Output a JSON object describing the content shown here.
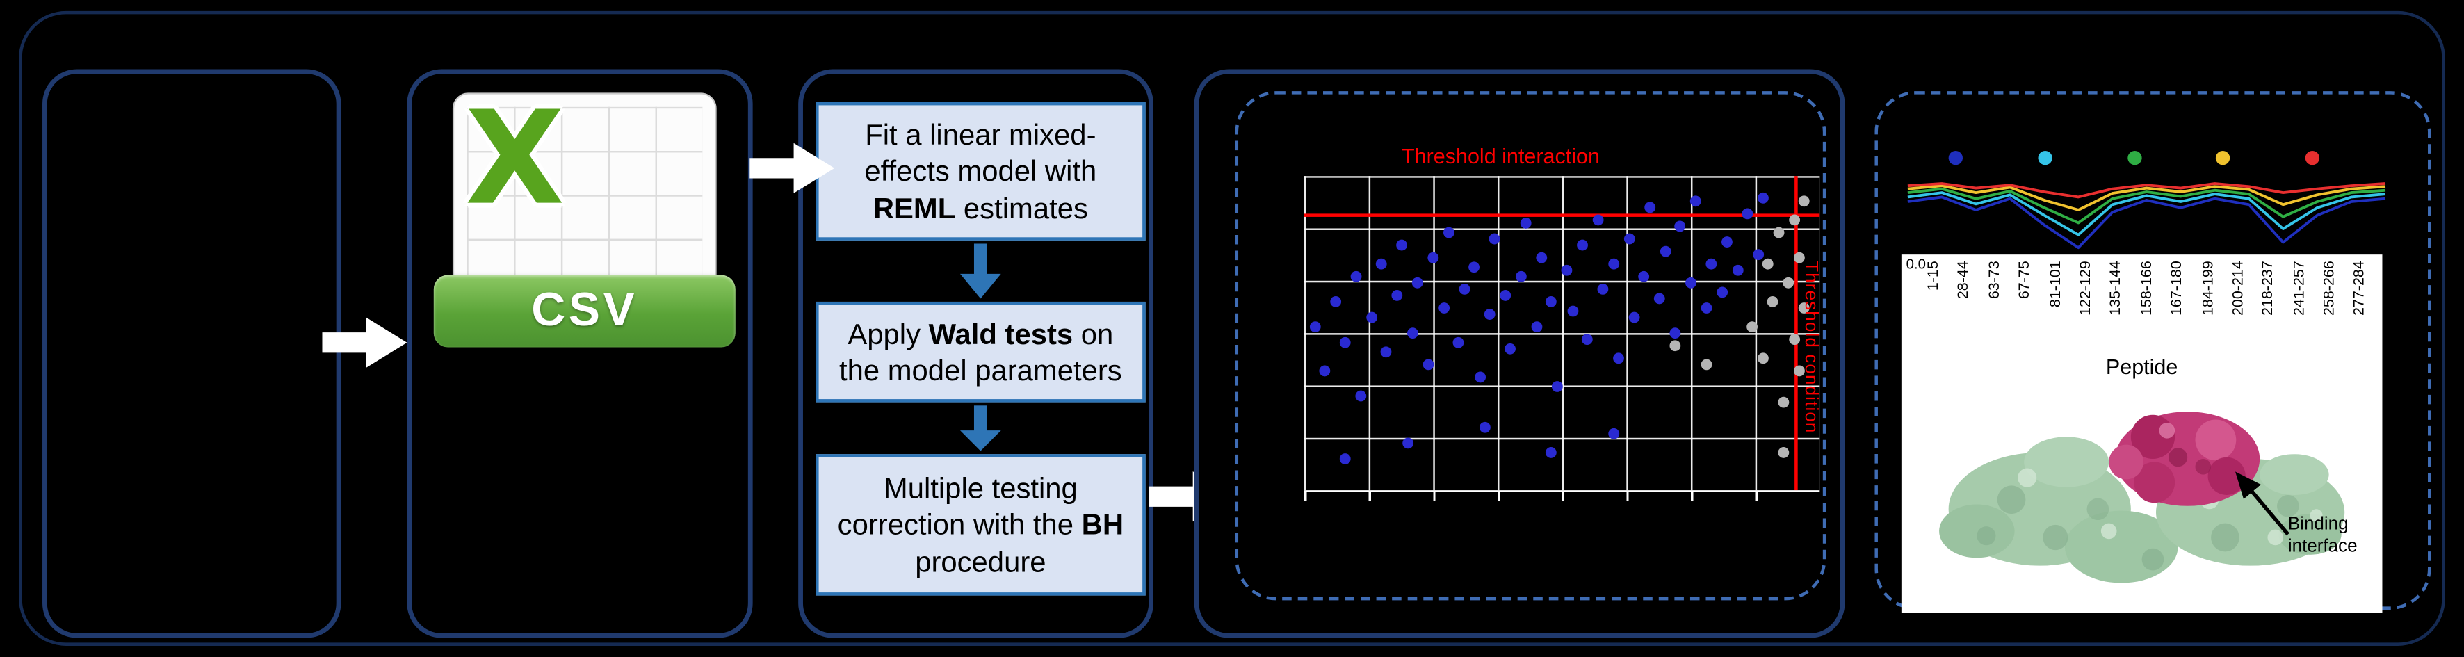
{
  "colors": {
    "background": "#000000",
    "panel_border": "#203a6e",
    "dashed_border": "#3f6cb4",
    "process_box_fill": "#dae3f3",
    "process_box_border": "#2e75b6",
    "flow_arrow": "#ffffff",
    "step_arrow": "#2e75b6",
    "threshold_red": "#ff0000",
    "csv_green": "#58a41e",
    "protein_green": "#a6cbab",
    "epitope_pink": "#c23a77"
  },
  "csv_icon": {
    "letter": "X",
    "label": "CSV"
  },
  "pipeline": {
    "steps": [
      {
        "pre": "Fit a linear mixed-effects model with ",
        "bold": "REML",
        "post": " estimates"
      },
      {
        "pre": "Apply ",
        "bold": "Wald tests",
        "post": " on the model parameters"
      },
      {
        "pre": "Multiple testing correction with the ",
        "bold": "BH",
        "post": " procedure"
      }
    ]
  },
  "results": {
    "binding_label": "Binding interface"
  },
  "chart_data": [
    {
      "id": "threshold-scatter",
      "type": "scatter",
      "title": "Threshold interaction",
      "vertical_label": "Threshold condition",
      "background": "#000000",
      "grid": {
        "on": true,
        "color": "#ffffff",
        "x_divisions": 8,
        "y_divisions": 6
      },
      "thresholds": {
        "horizontal_y_pct": 88,
        "vertical_x_pct": 95,
        "color": "#ff0000"
      },
      "units": "points are [x_pct_from_left, y_pct_from_bottom] of plot area",
      "series": [
        {
          "name": "scatter-point-blue",
          "color": "#2a2ad2",
          "points": [
            [
              2,
              52
            ],
            [
              4,
              38
            ],
            [
              6,
              60
            ],
            [
              8,
              10
            ],
            [
              8,
              47
            ],
            [
              10,
              68
            ],
            [
              11,
              30
            ],
            [
              13,
              55
            ],
            [
              15,
              72
            ],
            [
              16,
              44
            ],
            [
              18,
              62
            ],
            [
              19,
              78
            ],
            [
              20,
              15
            ],
            [
              21,
              50
            ],
            [
              22,
              66
            ],
            [
              24,
              40
            ],
            [
              25,
              74
            ],
            [
              27,
              58
            ],
            [
              28,
              82
            ],
            [
              30,
              47
            ],
            [
              31,
              64
            ],
            [
              33,
              71
            ],
            [
              34,
              36
            ],
            [
              35,
              20
            ],
            [
              36,
              56
            ],
            [
              37,
              80
            ],
            [
              39,
              62
            ],
            [
              40,
              45
            ],
            [
              42,
              68
            ],
            [
              43,
              85
            ],
            [
              45,
              52
            ],
            [
              46,
              74
            ],
            [
              48,
              12
            ],
            [
              48,
              60
            ],
            [
              49,
              33
            ],
            [
              51,
              70
            ],
            [
              52,
              57
            ],
            [
              54,
              78
            ],
            [
              55,
              48
            ],
            [
              57,
              86
            ],
            [
              58,
              64
            ],
            [
              60,
              18
            ],
            [
              60,
              72
            ],
            [
              61,
              42
            ],
            [
              63,
              80
            ],
            [
              64,
              55
            ],
            [
              66,
              68
            ],
            [
              67,
              90
            ],
            [
              69,
              61
            ],
            [
              70,
              76
            ],
            [
              72,
              50
            ],
            [
              73,
              84
            ],
            [
              75,
              66
            ],
            [
              76,
              92
            ],
            [
              78,
              58
            ],
            [
              79,
              72
            ],
            [
              81,
              63
            ],
            [
              82,
              79
            ],
            [
              84,
              70
            ],
            [
              86,
              88
            ],
            [
              88,
              75
            ],
            [
              89,
              93
            ]
          ]
        },
        {
          "name": "scatter-point-grey",
          "color": "#b5b5b5",
          "points": [
            [
              72,
              46
            ],
            [
              78,
              40
            ],
            [
              87,
              52
            ],
            [
              89,
              42
            ],
            [
              90,
              72
            ],
            [
              91,
              60
            ],
            [
              92,
              82
            ],
            [
              93,
              12
            ],
            [
              93,
              28
            ],
            [
              94,
              66
            ],
            [
              95,
              48
            ],
            [
              95,
              86
            ],
            [
              96,
              38
            ],
            [
              96,
              74
            ],
            [
              97,
              58
            ],
            [
              97,
              92
            ]
          ]
        }
      ]
    },
    {
      "id": "peptide-profiles",
      "type": "line",
      "categories": [
        "1-15",
        "28-44",
        "63-73",
        "67-75",
        "81-101",
        "122-129",
        "135-144",
        "158-166",
        "167-180",
        "184-199",
        "200-214",
        "218-237",
        "241-257",
        "258-266",
        "277-284"
      ],
      "xlabel": "Peptide",
      "ytick_labels": [
        "0.0"
      ],
      "ylim": [
        0,
        1
      ],
      "legend_position": "top",
      "legend_colors": [
        "#1f2fbe",
        "#35c4e8",
        "#2fae44",
        "#f0c22e",
        "#e82f2f"
      ],
      "series": [
        {
          "name": "navy",
          "color": "#1f2fbe",
          "values": [
            0.66,
            0.72,
            0.55,
            0.7,
            0.35,
            0.05,
            0.52,
            0.68,
            0.58,
            0.7,
            0.62,
            0.12,
            0.48,
            0.66,
            0.7
          ]
        },
        {
          "name": "cyan",
          "color": "#35c4e8",
          "values": [
            0.72,
            0.78,
            0.63,
            0.75,
            0.48,
            0.22,
            0.62,
            0.74,
            0.66,
            0.76,
            0.7,
            0.3,
            0.58,
            0.72,
            0.76
          ]
        },
        {
          "name": "green",
          "color": "#2fae44",
          "values": [
            0.78,
            0.83,
            0.7,
            0.8,
            0.58,
            0.38,
            0.7,
            0.79,
            0.73,
            0.81,
            0.76,
            0.46,
            0.66,
            0.78,
            0.81
          ]
        },
        {
          "name": "yellow",
          "color": "#f0c22e",
          "values": [
            0.83,
            0.87,
            0.78,
            0.85,
            0.68,
            0.55,
            0.77,
            0.84,
            0.79,
            0.86,
            0.82,
            0.62,
            0.75,
            0.83,
            0.86
          ]
        },
        {
          "name": "red",
          "color": "#e82f2f",
          "values": [
            0.87,
            0.9,
            0.84,
            0.88,
            0.79,
            0.72,
            0.83,
            0.88,
            0.84,
            0.9,
            0.86,
            0.78,
            0.83,
            0.87,
            0.9
          ]
        }
      ]
    }
  ]
}
